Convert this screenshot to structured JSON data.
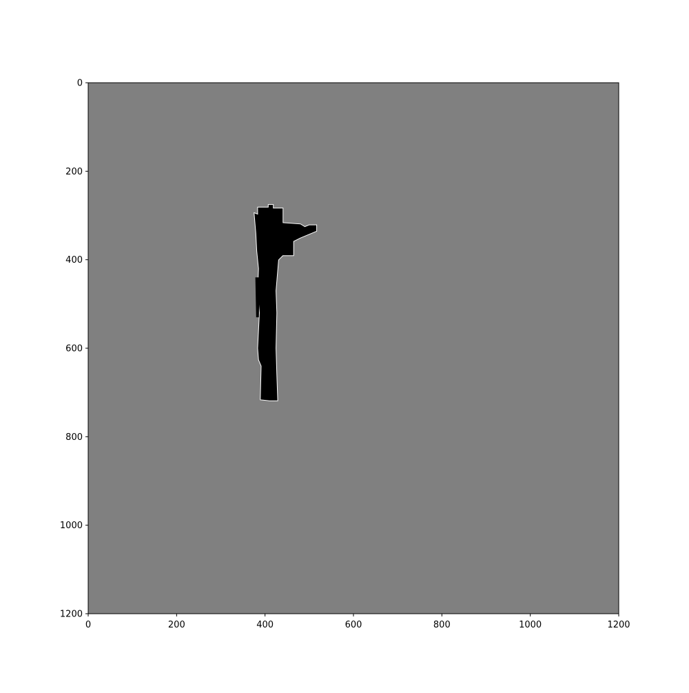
{
  "chart_data": {
    "type": "heatmap",
    "title": "",
    "xlabel": "",
    "ylabel": "",
    "xlim": [
      0,
      1200
    ],
    "ylim": [
      1200,
      0
    ],
    "y_axis_inverted": true,
    "grid": false,
    "x_ticks": [
      0,
      200,
      400,
      600,
      800,
      1000,
      1200
    ],
    "y_ticks": [
      0,
      200,
      400,
      600,
      800,
      1000,
      1200
    ],
    "x_tick_labels": [
      "0",
      "200",
      "400",
      "600",
      "800",
      "1000",
      "1200"
    ],
    "y_tick_labels": [
      "0",
      "200",
      "400",
      "600",
      "800",
      "1000",
      "1200"
    ],
    "colors": {
      "unknown": "#808080",
      "occupied": "#000000",
      "free": "#ffffff"
    },
    "occupied_region": [
      [
        408,
        276
      ],
      [
        418,
        276
      ],
      [
        418,
        284
      ],
      [
        440,
        284
      ],
      [
        440,
        317
      ],
      [
        480,
        320
      ],
      [
        490,
        326
      ],
      [
        500,
        322
      ],
      [
        516,
        322
      ],
      [
        516,
        335
      ],
      [
        480,
        350
      ],
      [
        464,
        358
      ],
      [
        464,
        390
      ],
      [
        440,
        390
      ],
      [
        430,
        400
      ],
      [
        424,
        470
      ],
      [
        426,
        520
      ],
      [
        424,
        600
      ],
      [
        426,
        660
      ],
      [
        428,
        718
      ],
      [
        410,
        718
      ],
      [
        390,
        716
      ],
      [
        392,
        640
      ],
      [
        386,
        626
      ],
      [
        384,
        600
      ],
      [
        388,
        520
      ],
      [
        384,
        470
      ],
      [
        386,
        420
      ],
      [
        382,
        380
      ],
      [
        380,
        340
      ],
      [
        376,
        295
      ],
      [
        384,
        298
      ],
      [
        384,
        282
      ],
      [
        408,
        282
      ]
    ],
    "occupied_patches": [
      [
        [
          378,
          440
        ],
        [
          388,
          440
        ],
        [
          386,
          530
        ],
        [
          380,
          530
        ]
      ],
      [
        [
          380,
          300
        ],
        [
          388,
          300
        ],
        [
          388,
          350
        ],
        [
          382,
          350
        ]
      ],
      [
        [
          440,
          330
        ],
        [
          500,
          330
        ],
        [
          500,
          336
        ],
        [
          440,
          346
        ]
      ]
    ]
  }
}
